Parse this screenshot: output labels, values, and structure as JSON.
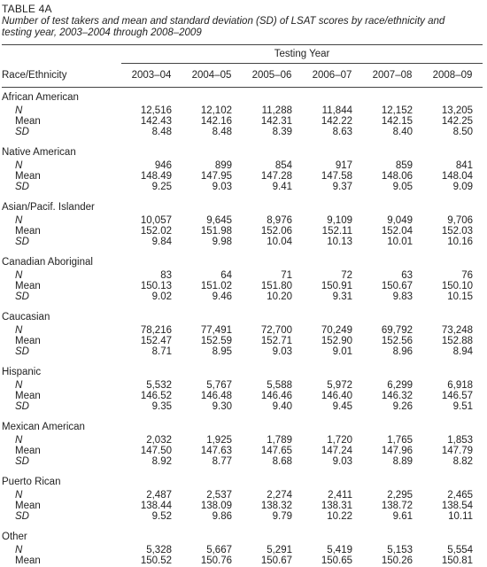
{
  "label": "TABLE 4A",
  "caption": "Number of test takers and mean and standard deviation (SD) of LSAT scores by race/ethnicity and testing year, 2003–2004 through 2008–2009",
  "header": {
    "group": "Testing Year",
    "first": "Race/Ethnicity",
    "years": [
      "2003–04",
      "2004–05",
      "2005–06",
      "2006–07",
      "2007–08",
      "2008–09"
    ]
  },
  "groups": [
    {
      "name": "African American",
      "rows": [
        {
          "stat": "N",
          "values": [
            "12,516",
            "12,102",
            "11,288",
            "11,844",
            "12,152",
            "13,205"
          ]
        },
        {
          "stat": "Mean",
          "values": [
            "142.43",
            "142.16",
            "142.31",
            "142.22",
            "142.15",
            "142.25"
          ]
        },
        {
          "stat": "SD",
          "values": [
            "8.48",
            "8.48",
            "8.39",
            "8.63",
            "8.40",
            "8.50"
          ]
        }
      ]
    },
    {
      "name": "Native American",
      "rows": [
        {
          "stat": "N",
          "values": [
            "946",
            "899",
            "854",
            "917",
            "859",
            "841"
          ]
        },
        {
          "stat": "Mean",
          "values": [
            "148.49",
            "147.95",
            "147.28",
            "147.58",
            "148.06",
            "148.04"
          ]
        },
        {
          "stat": "SD",
          "values": [
            "9.25",
            "9.03",
            "9.41",
            "9.37",
            "9.05",
            "9.09"
          ]
        }
      ]
    },
    {
      "name": "Asian/Pacif. Islander",
      "rows": [
        {
          "stat": "N",
          "values": [
            "10,057",
            "9,645",
            "8,976",
            "9,109",
            "9,049",
            "9,706"
          ]
        },
        {
          "stat": "Mean",
          "values": [
            "152.02",
            "151.98",
            "152.06",
            "152.11",
            "152.04",
            "152.03"
          ]
        },
        {
          "stat": "SD",
          "values": [
            "9.84",
            "9.98",
            "10.04",
            "10.13",
            "10.01",
            "10.16"
          ]
        }
      ]
    },
    {
      "name": "Canadian Aboriginal",
      "rows": [
        {
          "stat": "N",
          "values": [
            "83",
            "64",
            "71",
            "72",
            "63",
            "76"
          ]
        },
        {
          "stat": "Mean",
          "values": [
            "150.13",
            "151.02",
            "151.80",
            "150.91",
            "150.67",
            "150.10"
          ]
        },
        {
          "stat": "SD",
          "values": [
            "9.02",
            "9.46",
            "10.20",
            "9.31",
            "9.83",
            "10.15"
          ]
        }
      ]
    },
    {
      "name": "Caucasian",
      "rows": [
        {
          "stat": "N",
          "values": [
            "78,216",
            "77,491",
            "72,700",
            "70,249",
            "69,792",
            "73,248"
          ]
        },
        {
          "stat": "Mean",
          "values": [
            "152.47",
            "152.59",
            "152.71",
            "152.90",
            "152.56",
            "152.88"
          ]
        },
        {
          "stat": "SD",
          "values": [
            "8.71",
            "8.95",
            "9.03",
            "9.01",
            "8.96",
            "8.94"
          ]
        }
      ]
    },
    {
      "name": "Hispanic",
      "rows": [
        {
          "stat": "N",
          "values": [
            "5,532",
            "5,767",
            "5,588",
            "5,972",
            "6,299",
            "6,918"
          ]
        },
        {
          "stat": "Mean",
          "values": [
            "146.52",
            "146.48",
            "146.46",
            "146.40",
            "146.32",
            "146.57"
          ]
        },
        {
          "stat": "SD",
          "values": [
            "9.35",
            "9.30",
            "9.40",
            "9.45",
            "9.26",
            "9.51"
          ]
        }
      ]
    },
    {
      "name": "Mexican American",
      "rows": [
        {
          "stat": "N",
          "values": [
            "2,032",
            "1,925",
            "1,789",
            "1,720",
            "1,765",
            "1,853"
          ]
        },
        {
          "stat": "Mean",
          "values": [
            "147.50",
            "147.63",
            "147.65",
            "147.24",
            "147.96",
            "147.79"
          ]
        },
        {
          "stat": "SD",
          "values": [
            "8.92",
            "8.77",
            "8.68",
            "9.03",
            "8.89",
            "8.82"
          ]
        }
      ]
    },
    {
      "name": "Puerto Rican",
      "rows": [
        {
          "stat": "N",
          "values": [
            "2,487",
            "2,537",
            "2,274",
            "2,411",
            "2,295",
            "2,465"
          ]
        },
        {
          "stat": "Mean",
          "values": [
            "138.44",
            "138.09",
            "138.32",
            "138.31",
            "138.72",
            "138.54"
          ]
        },
        {
          "stat": "SD",
          "values": [
            "9.52",
            "9.86",
            "9.79",
            "10.22",
            "9.61",
            "10.11"
          ]
        }
      ]
    },
    {
      "name": "Other",
      "rows": [
        {
          "stat": "N",
          "values": [
            "5,328",
            "5,667",
            "5,291",
            "5,419",
            "5,153",
            "5,554"
          ]
        },
        {
          "stat": "Mean",
          "values": [
            "150.52",
            "150.76",
            "150.67",
            "150.65",
            "150.26",
            "150.81"
          ]
        }
      ]
    }
  ]
}
